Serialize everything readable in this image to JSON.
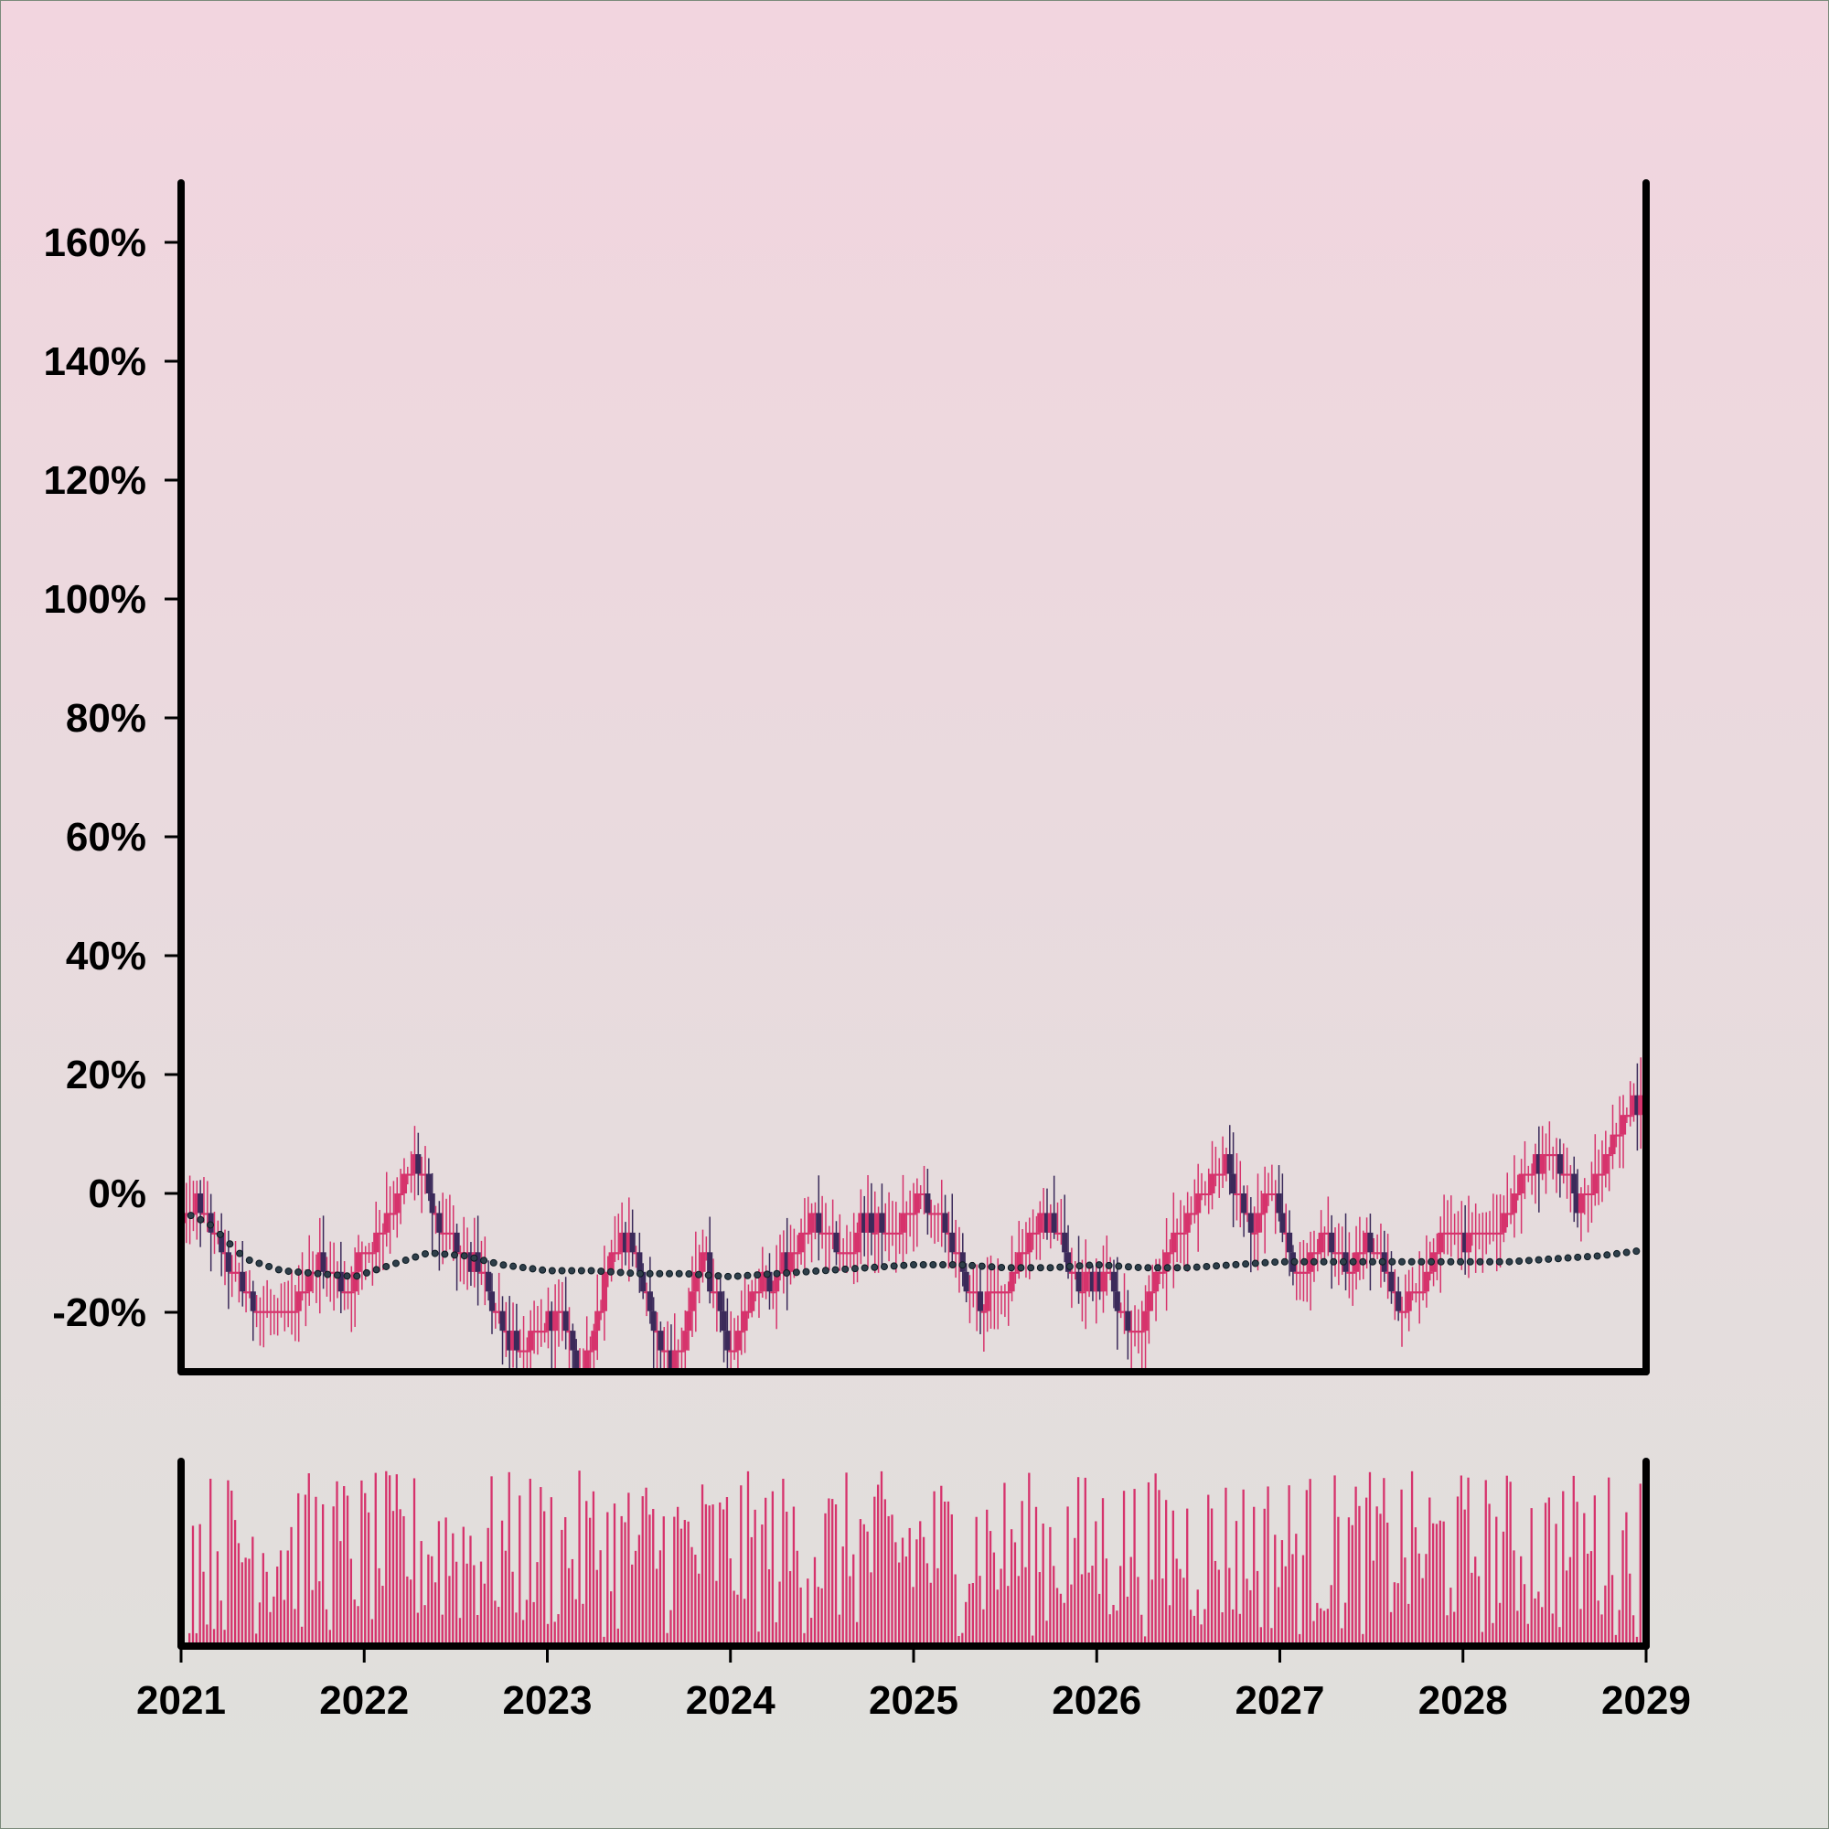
{
  "chart_data": [
    {
      "type": "candlestick",
      "title": "",
      "xlabel": "",
      "ylabel": "",
      "y_unit": "%",
      "xlim": [
        "2021-01",
        "2029-01"
      ],
      "ylim": [
        -30,
        170
      ],
      "y_ticks": [
        -20,
        0,
        20,
        40,
        60,
        80,
        100,
        120,
        140,
        160
      ],
      "y_tick_labels": [
        "-20%",
        "0%",
        "20%",
        "40%",
        "60%",
        "80%",
        "100%",
        "120%",
        "140%",
        "160%"
      ],
      "x_tick_labels": [
        "2021",
        "2022",
        "2023",
        "2024",
        "2025",
        "2026",
        "2027",
        "2028",
        "2029"
      ],
      "grid": false,
      "colors": {
        "up": "#d6336c",
        "down": "#3b2a5a",
        "moving_average": "#2f3f4a"
      },
      "candles": {
        "interval": "weekly",
        "count": 417,
        "start": "2021-01",
        "end": "2029-01",
        "close_path_anchors": [
          [
            2021.0,
            -5
          ],
          [
            2021.1,
            -2
          ],
          [
            2021.3,
            -14
          ],
          [
            2021.45,
            -20
          ],
          [
            2021.6,
            -20
          ],
          [
            2021.75,
            -11
          ],
          [
            2021.9,
            -16
          ],
          [
            2022.05,
            -8
          ],
          [
            2022.2,
            0
          ],
          [
            2022.28,
            6
          ],
          [
            2022.4,
            -5
          ],
          [
            2022.55,
            -10
          ],
          [
            2022.7,
            -18
          ],
          [
            2022.85,
            -27
          ],
          [
            2023.05,
            -20
          ],
          [
            2023.2,
            -30
          ],
          [
            2023.35,
            -10
          ],
          [
            2023.45,
            -7
          ],
          [
            2023.6,
            -25
          ],
          [
            2023.7,
            -29
          ],
          [
            2023.85,
            -10
          ],
          [
            2024.0,
            -27
          ],
          [
            2024.15,
            -16
          ],
          [
            2024.3,
            -12
          ],
          [
            2024.45,
            -4
          ],
          [
            2024.6,
            -11
          ],
          [
            2024.75,
            -4
          ],
          [
            2024.9,
            -8
          ],
          [
            2025.05,
            0
          ],
          [
            2025.2,
            -8
          ],
          [
            2025.35,
            -19
          ],
          [
            2025.5,
            -16
          ],
          [
            2025.65,
            -6
          ],
          [
            2025.75,
            -4
          ],
          [
            2025.9,
            -16
          ],
          [
            2026.05,
            -13
          ],
          [
            2026.2,
            -24
          ],
          [
            2026.35,
            -13
          ],
          [
            2026.5,
            -3
          ],
          [
            2026.7,
            5
          ],
          [
            2026.85,
            -6
          ],
          [
            2026.95,
            0
          ],
          [
            2027.1,
            -14
          ],
          [
            2027.25,
            -8
          ],
          [
            2027.35,
            -12
          ],
          [
            2027.5,
            -8
          ],
          [
            2027.65,
            -19
          ],
          [
            2027.8,
            -14
          ],
          [
            2027.9,
            -7
          ],
          [
            2028.05,
            -7
          ],
          [
            2028.2,
            -7
          ],
          [
            2028.35,
            4
          ],
          [
            2028.5,
            7
          ],
          [
            2028.65,
            -2
          ],
          [
            2028.8,
            8
          ],
          [
            2028.9,
            14
          ],
          [
            2029.0,
            18
          ]
        ]
      },
      "moving_average": {
        "anchors": [
          [
            2021.0,
            -3
          ],
          [
            2021.15,
            -5
          ],
          [
            2021.35,
            -11
          ],
          [
            2021.55,
            -13
          ],
          [
            2021.75,
            -13.5
          ],
          [
            2021.95,
            -14
          ],
          [
            2022.15,
            -12
          ],
          [
            2022.35,
            -10
          ],
          [
            2022.55,
            -10.5
          ],
          [
            2022.75,
            -12
          ],
          [
            2023.0,
            -13
          ],
          [
            2023.25,
            -13
          ],
          [
            2023.5,
            -13.5
          ],
          [
            2023.75,
            -13.5
          ],
          [
            2024.0,
            -14
          ],
          [
            2024.25,
            -13.5
          ],
          [
            2024.5,
            -13
          ],
          [
            2024.75,
            -12.5
          ],
          [
            2025.0,
            -12
          ],
          [
            2025.25,
            -12
          ],
          [
            2025.5,
            -12.5
          ],
          [
            2025.75,
            -12.5
          ],
          [
            2026.0,
            -12
          ],
          [
            2026.25,
            -12.5
          ],
          [
            2026.5,
            -12.5
          ],
          [
            2026.75,
            -12
          ],
          [
            2027.0,
            -11.5
          ],
          [
            2027.25,
            -11.5
          ],
          [
            2027.5,
            -11.5
          ],
          [
            2027.75,
            -11.5
          ],
          [
            2028.0,
            -11.5
          ],
          [
            2028.25,
            -11.5
          ],
          [
            2028.5,
            -11
          ],
          [
            2028.75,
            -10.5
          ],
          [
            2029.0,
            -9.5
          ]
        ]
      }
    },
    {
      "type": "bar",
      "role": "volume",
      "title": "",
      "xlabel": "",
      "ylabel": "",
      "y_axis_labels": false,
      "x_tick_labels": [
        "2021",
        "2022",
        "2023",
        "2024",
        "2025",
        "2026",
        "2027",
        "2028",
        "2029"
      ],
      "color": "#d6336c",
      "bars": {
        "count": 417,
        "start": "2021-01",
        "end": "2029-01",
        "relative_range": [
          0.05,
          1.0
        ]
      }
    }
  ]
}
